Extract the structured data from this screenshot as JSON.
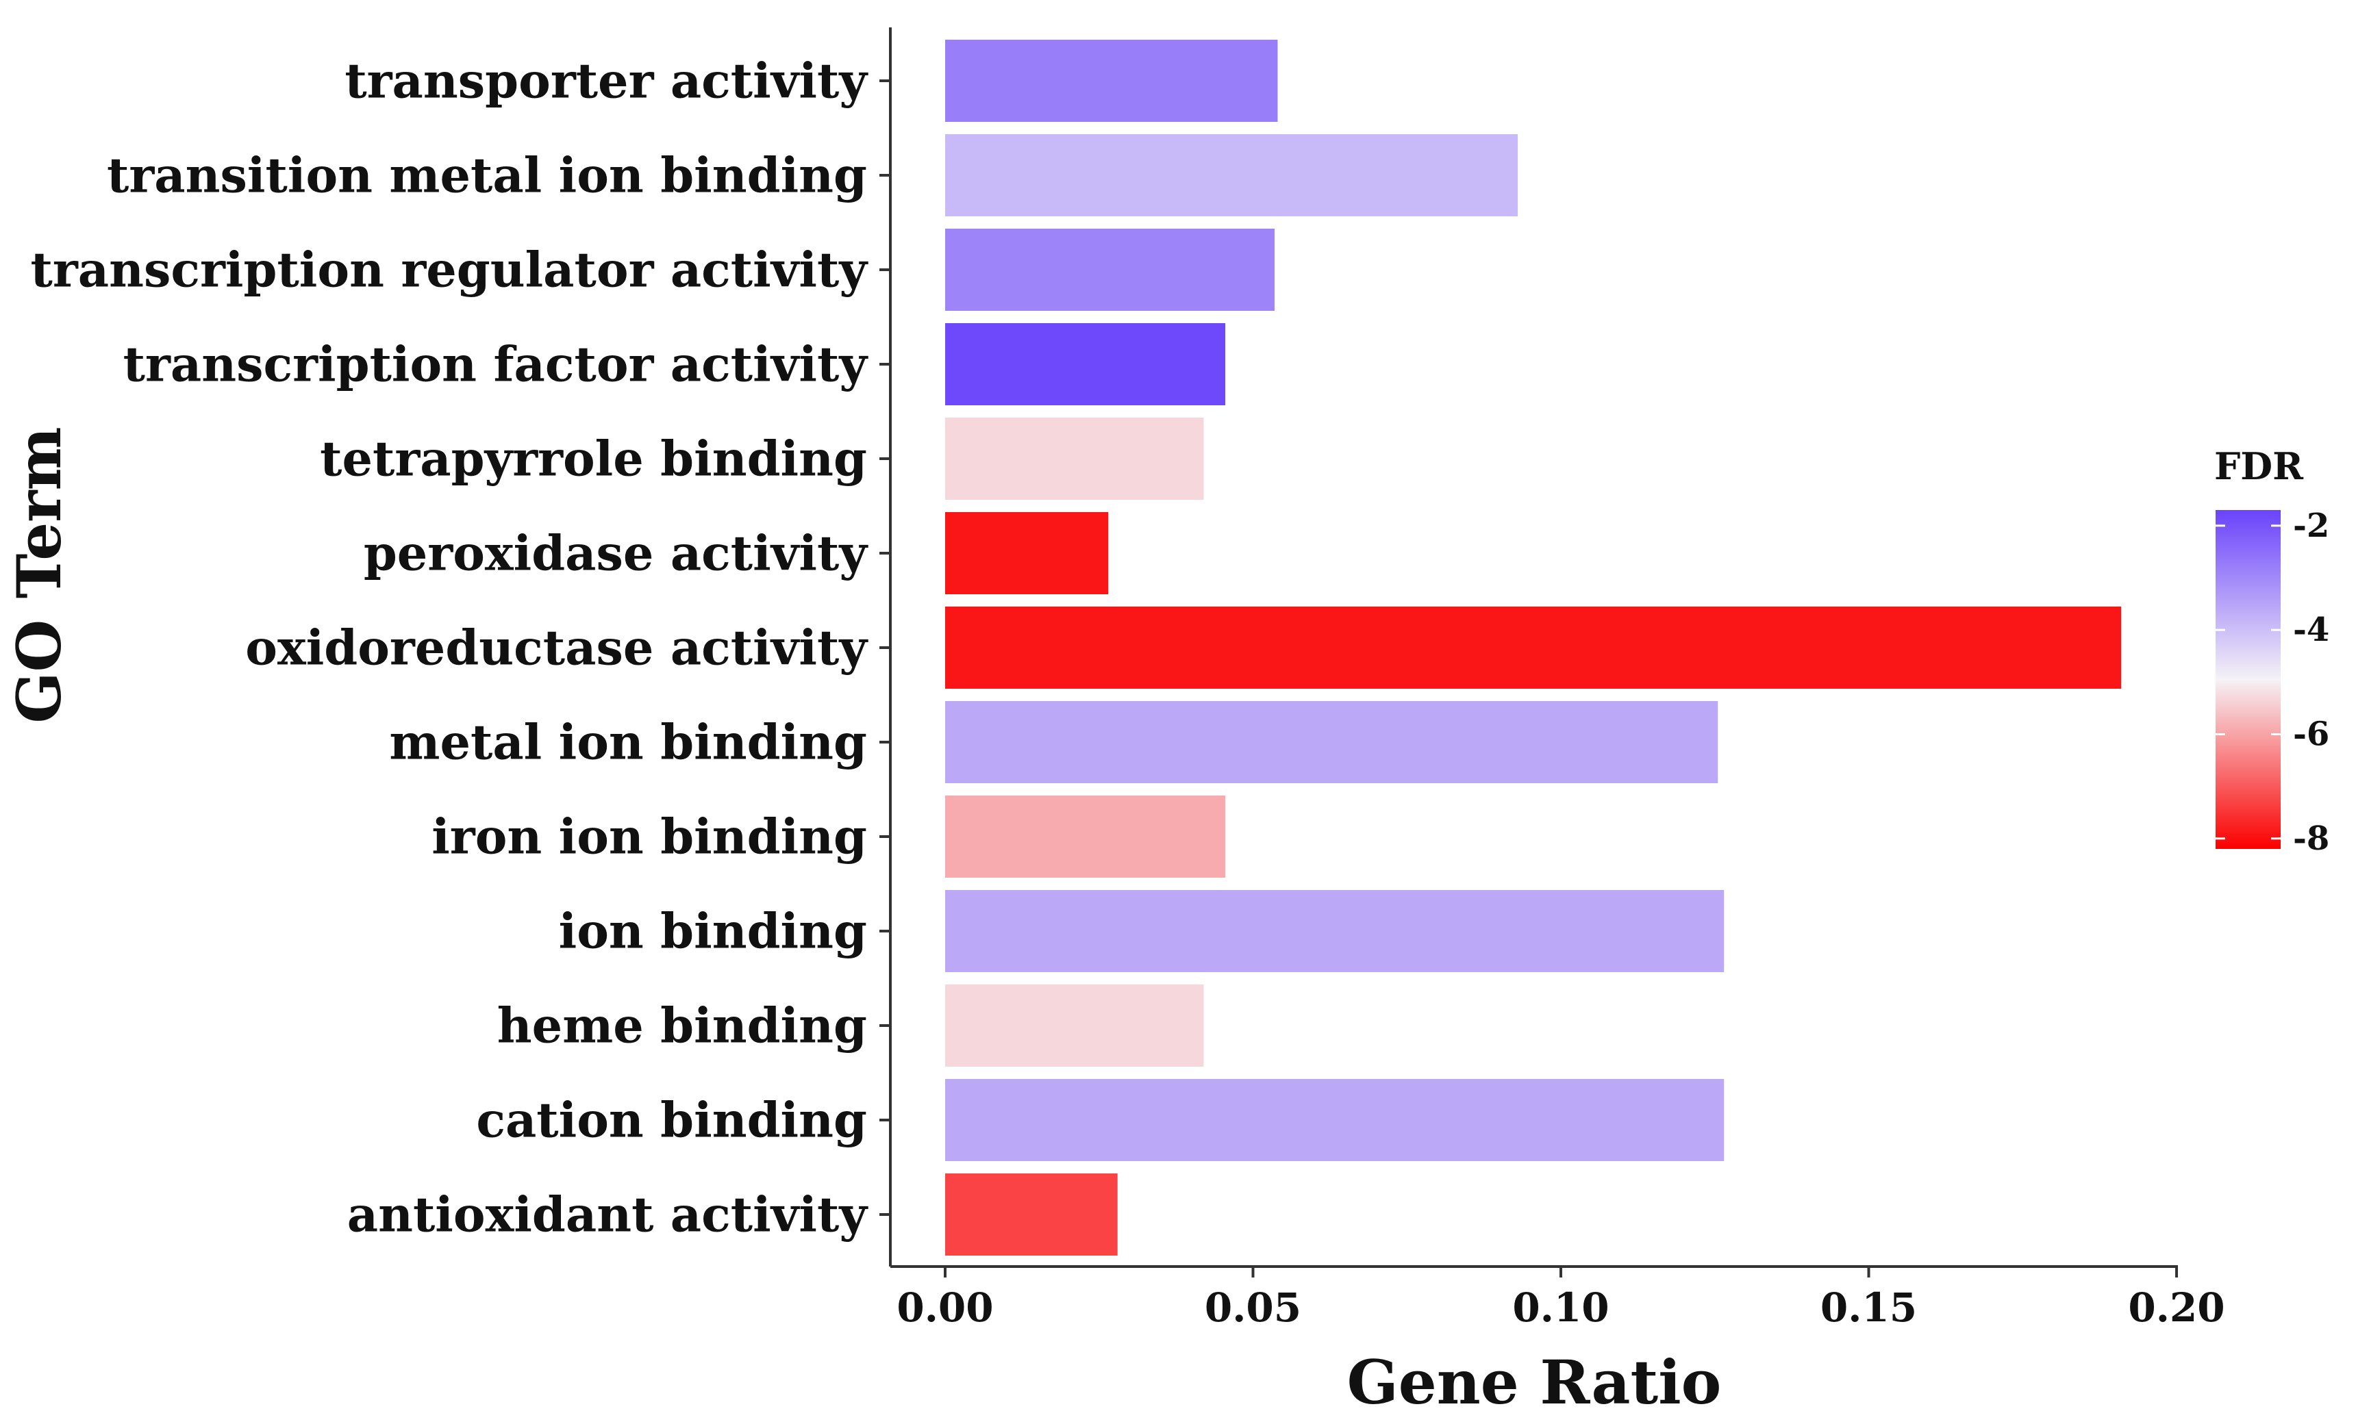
{
  "chart_data": {
    "type": "bar",
    "orientation": "horizontal",
    "title": "",
    "xlabel": "Gene Ratio",
    "ylabel": "GO Term",
    "xlim": [
      0,
      0.2
    ],
    "xticks": [
      0.0,
      0.05,
      0.1,
      0.15,
      0.2
    ],
    "xtick_labels": [
      "0.00",
      "0.05",
      "0.10",
      "0.15",
      "0.20"
    ],
    "categories": [
      "transporter activity",
      "transition metal ion binding",
      "transcription regulator activity",
      "transcription factor activity",
      "tetrapyrrole binding",
      "peroxidase activity",
      "oxidoreductase activity",
      "metal ion binding",
      "iron ion binding",
      "ion binding",
      "heme binding",
      "cation binding",
      "antioxidant activity"
    ],
    "values": [
      0.054,
      0.093,
      0.0535,
      0.0455,
      0.042,
      0.0265,
      0.191,
      0.1255,
      0.0455,
      0.1265,
      0.042,
      0.1265,
      0.028
    ],
    "fdr": [
      -2.8,
      -3.9,
      -2.9,
      -1.8,
      -5.3,
      -7.9,
      -7.9,
      -3.6,
      -5.9,
      -3.6,
      -5.3,
      -3.6,
      -7.3
    ],
    "legend": {
      "title": "FDR",
      "position": "right",
      "range": [
        -8.2,
        -1.7
      ],
      "ticks": [
        -2,
        -4,
        -6,
        -8
      ],
      "tick_labels": [
        "-2",
        "-4",
        "-6",
        "-8"
      ],
      "colors": {
        "high": "#6a43fb",
        "mid": "#f5f2f6",
        "low": "#fb0000"
      }
    },
    "grid": false
  }
}
